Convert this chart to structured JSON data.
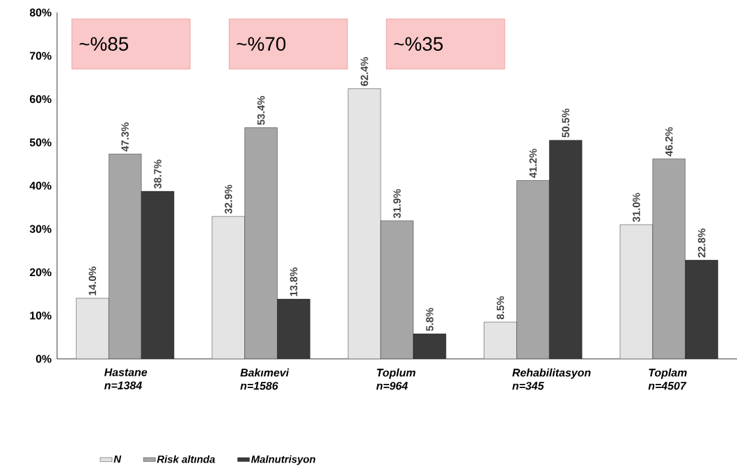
{
  "chart_data": {
    "type": "bar",
    "categories": [
      "Hastane n=1384",
      "Bakımevi n=1586",
      "Toplum n=964",
      "Rehabilitasyon n=345",
      "Toplam n=4507"
    ],
    "series": [
      {
        "name": "N",
        "color": "#e4e4e4",
        "values": [
          14.0,
          32.9,
          62.4,
          8.5,
          31.0
        ],
        "value_labels": [
          "14.0%",
          "32.9%",
          "62.4%",
          "8.5%",
          "31.0%"
        ]
      },
      {
        "name": "Risk altında",
        "color": "#a6a6a6",
        "values": [
          47.3,
          53.4,
          31.9,
          41.2,
          46.2
        ],
        "value_labels": [
          "47.3%",
          "53.4%",
          "31.9%",
          "41.2%",
          "46.2%"
        ]
      },
      {
        "name": "Malnutrisyon",
        "color": "#3a3a3a",
        "values": [
          38.7,
          13.8,
          5.8,
          50.5,
          22.8
        ],
        "value_labels": [
          "38.7%",
          "13.8%",
          "5.8%",
          "50.5%",
          "22.8%"
        ]
      }
    ],
    "ylim": [
      0,
      80
    ],
    "yticks": [
      {
        "value": 0,
        "label": "0%"
      },
      {
        "value": 10,
        "label": "10%"
      },
      {
        "value": 20,
        "label": "20%"
      },
      {
        "value": 30,
        "label": "30%"
      },
      {
        "value": 40,
        "label": "40%"
      },
      {
        "value": 50,
        "label": "50%"
      },
      {
        "value": 60,
        "label": "60%"
      },
      {
        "value": 70,
        "label": "70%"
      },
      {
        "value": 80,
        "label": "80%"
      }
    ],
    "annotations": [
      "~%85",
      "~%70",
      "~%35"
    ],
    "legend": "bottom",
    "grid": false
  }
}
